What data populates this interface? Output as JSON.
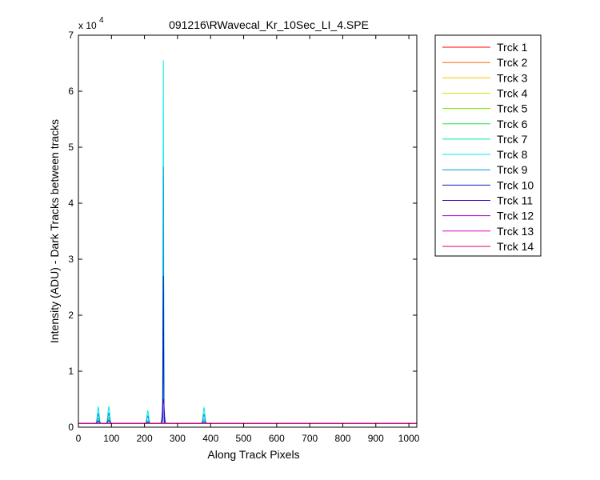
{
  "figure": {
    "background": "#ffffff"
  },
  "chart_data": {
    "type": "line",
    "title": "091216\\RWavecal_Kr_10Sec_LI_4.SPE",
    "xlabel": "Along Track Pixels",
    "ylabel": "Intensity (ADU) - Dark Tracks between tracks",
    "y_exponent_label": "x 10",
    "y_exponent": "4",
    "xlim": [
      0,
      1024
    ],
    "ylim": [
      0,
      70000
    ],
    "xticks": [
      0,
      100,
      200,
      300,
      400,
      500,
      600,
      700,
      800,
      900,
      1000
    ],
    "yticks": [
      0,
      10000,
      20000,
      30000,
      40000,
      50000,
      60000,
      70000
    ],
    "ytick_labels": [
      "0",
      "1",
      "2",
      "3",
      "4",
      "5",
      "6",
      "7"
    ],
    "grid": false,
    "legend_position": "outside-right",
    "baseline": 700,
    "series": [
      {
        "name": "Trck 1",
        "color": "#ff0000",
        "peaks": []
      },
      {
        "name": "Trck 2",
        "color": "#ff6000",
        "peaks": []
      },
      {
        "name": "Trck 3",
        "color": "#ffc000",
        "peaks": []
      },
      {
        "name": "Trck 4",
        "color": "#d8e000",
        "peaks": []
      },
      {
        "name": "Trck 5",
        "color": "#80e000",
        "peaks": []
      },
      {
        "name": "Trck 6",
        "color": "#20e040",
        "peaks": []
      },
      {
        "name": "Trck 7",
        "color": "#00e8a0",
        "peaks": [
          [
            60,
            1500
          ],
          [
            92,
            1600
          ],
          [
            210,
            1200
          ],
          [
            257,
            20000
          ],
          [
            380,
            1400
          ]
        ]
      },
      {
        "name": "Trck 8",
        "color": "#00e8e8",
        "peaks": [
          [
            60,
            3600
          ],
          [
            92,
            3700
          ],
          [
            210,
            2900
          ],
          [
            257,
            65500
          ],
          [
            380,
            3500
          ]
        ]
      },
      {
        "name": "Trck 9",
        "color": "#0098d8",
        "peaks": [
          [
            60,
            2400
          ],
          [
            92,
            2500
          ],
          [
            210,
            2000
          ],
          [
            257,
            46500
          ],
          [
            380,
            2300
          ]
        ]
      },
      {
        "name": "Trck 10",
        "color": "#0020c0",
        "peaks": [
          [
            60,
            1100
          ],
          [
            92,
            1200
          ],
          [
            210,
            900
          ],
          [
            257,
            27000
          ],
          [
            380,
            1000
          ]
        ]
      },
      {
        "name": "Trck 11",
        "color": "#4000c0",
        "peaks": [
          [
            257,
            5000
          ]
        ]
      },
      {
        "name": "Trck 12",
        "color": "#a000d0",
        "peaks": []
      },
      {
        "name": "Trck 13",
        "color": "#e000c0",
        "peaks": []
      },
      {
        "name": "Trck 14",
        "color": "#e00070",
        "peaks": []
      }
    ]
  }
}
